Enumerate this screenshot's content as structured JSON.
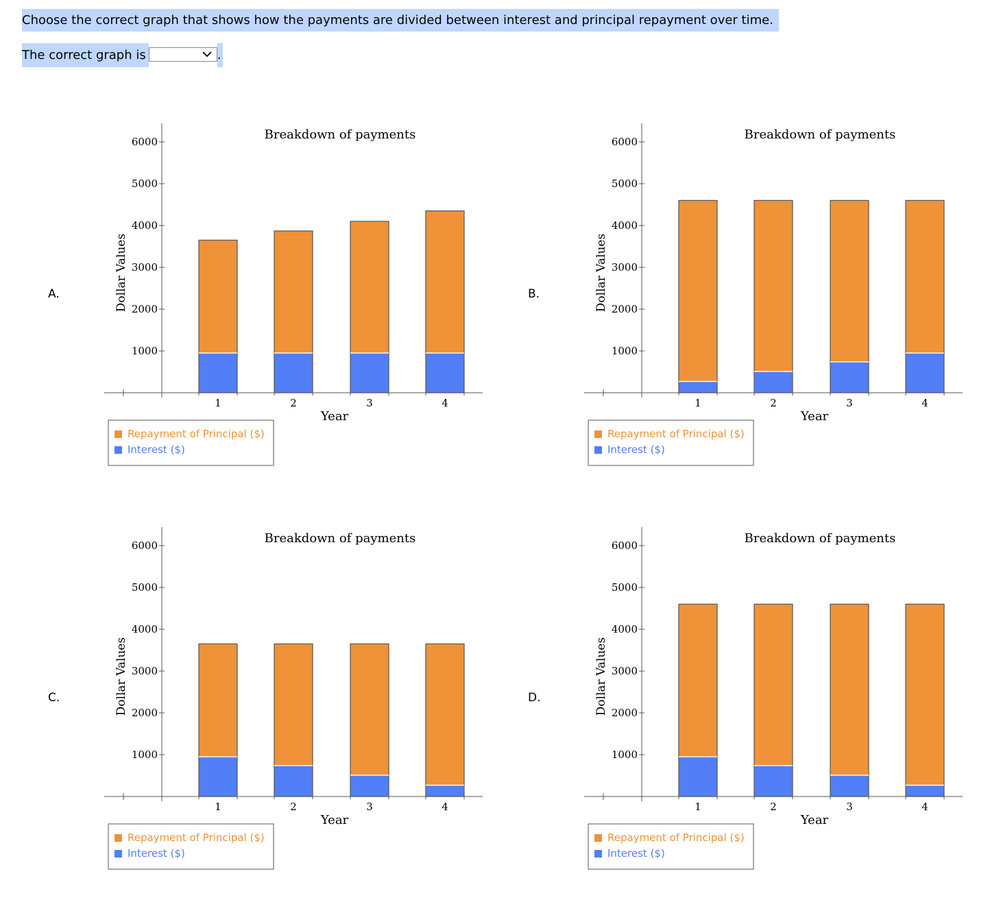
{
  "question": "Choose the correct graph that shows how the payments are divided between interest and principal repayment over time.",
  "answer_prompt": "The correct graph is",
  "answer_suffix": ".",
  "dropdown": {
    "selected": "",
    "icon": "chevron-down-icon"
  },
  "colors": {
    "principal": "#ef9238",
    "interest": "#527ef7",
    "question_highlight": "#bfd7ff"
  },
  "chart_data": [
    {
      "option": "A.",
      "type": "bar",
      "stacked": true,
      "title": "Breakdown of payments",
      "xlabel": "Year",
      "ylabel": "Dollar Values",
      "categories": [
        "1",
        "2",
        "3",
        "4"
      ],
      "yticks": [
        "1000",
        "2000",
        "3000",
        "4000",
        "5000",
        "6000"
      ],
      "ylim": [
        0,
        6000
      ],
      "series": [
        {
          "name": "Interest ($)",
          "values": [
            950,
            950,
            950,
            950
          ]
        },
        {
          "name": "Repayment of Principal ($)",
          "values": [
            2700,
            2920,
            3150,
            3400
          ]
        }
      ],
      "legend": [
        "Repayment of Principal ($)",
        "Interest ($)"
      ],
      "legend_position": "bottom-left"
    },
    {
      "option": "B.",
      "type": "bar",
      "stacked": true,
      "title": "Breakdown of payments",
      "xlabel": "Year",
      "ylabel": "Dollar Values",
      "categories": [
        "1",
        "2",
        "3",
        "4"
      ],
      "yticks": [
        "1000",
        "2000",
        "3000",
        "4000",
        "5000",
        "6000"
      ],
      "ylim": [
        0,
        6000
      ],
      "series": [
        {
          "name": "Interest ($)",
          "values": [
            270,
            510,
            740,
            950
          ]
        },
        {
          "name": "Repayment of Principal ($)",
          "values": [
            4330,
            4090,
            3860,
            3650
          ]
        }
      ],
      "legend": [
        "Repayment of Principal ($)",
        "Interest ($)"
      ],
      "legend_position": "bottom-left"
    },
    {
      "option": "C.",
      "type": "bar",
      "stacked": true,
      "title": "Breakdown of payments",
      "xlabel": "Year",
      "ylabel": "Dollar Values",
      "categories": [
        "1",
        "2",
        "3",
        "4"
      ],
      "yticks": [
        "1000",
        "2000",
        "3000",
        "4000",
        "5000",
        "6000"
      ],
      "ylim": [
        0,
        6000
      ],
      "series": [
        {
          "name": "Interest ($)",
          "values": [
            950,
            740,
            510,
            270
          ]
        },
        {
          "name": "Repayment of Principal ($)",
          "values": [
            2700,
            2910,
            3140,
            3380
          ]
        }
      ],
      "legend": [
        "Repayment of Principal ($)",
        "Interest ($)"
      ],
      "legend_position": "bottom-left"
    },
    {
      "option": "D.",
      "type": "bar",
      "stacked": true,
      "title": "Breakdown of payments",
      "xlabel": "Year",
      "ylabel": "Dollar Values",
      "categories": [
        "1",
        "2",
        "3",
        "4"
      ],
      "yticks": [
        "1000",
        "2000",
        "3000",
        "4000",
        "5000",
        "6000"
      ],
      "ylim": [
        0,
        6000
      ],
      "series": [
        {
          "name": "Interest ($)",
          "values": [
            950,
            740,
            510,
            270
          ]
        },
        {
          "name": "Repayment of Principal ($)",
          "values": [
            3650,
            3860,
            4090,
            4330
          ]
        }
      ],
      "legend": [
        "Repayment of Principal ($)",
        "Interest ($)"
      ],
      "legend_position": "bottom-left"
    }
  ]
}
